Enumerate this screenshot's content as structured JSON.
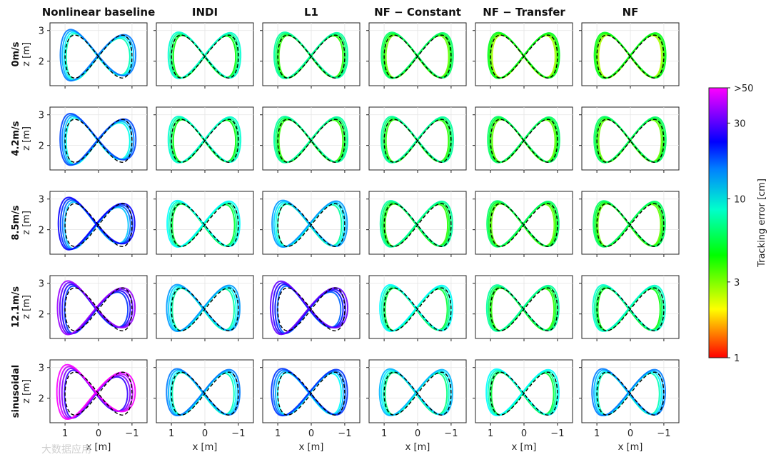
{
  "chart_data": {
    "type": "line",
    "columns": [
      "Nonlinear baseline",
      "INDI",
      "L1",
      "NF − Constant",
      "NF − Transfer",
      "NF"
    ],
    "rows": [
      "0m/s",
      "4.2m/s",
      "8.5m/s",
      "12.1m/s",
      "sinusoidal"
    ],
    "xlabel": "x [m]",
    "ylabel": "z [m]",
    "xticks": [
      "1",
      "0",
      "−1"
    ],
    "yticks": [
      "3",
      "2"
    ],
    "xlim": [
      1.45,
      -1.45
    ],
    "ylim": [
      1.2,
      3.25
    ],
    "reference": {
      "shape": "figure-eight",
      "x_amplitude": 1.0,
      "z_center": 2.15,
      "z_amplitude": 0.7,
      "style": "dashed black"
    },
    "colorbar": {
      "label": "Tracking error [cm]",
      "scale": "log",
      "ticks": [
        "1",
        "3",
        "10",
        "30",
        ">50"
      ],
      "range": [
        1,
        50
      ]
    },
    "mean_error_level_cm": [
      [
        12,
        7,
        6,
        5,
        4,
        4
      ],
      [
        14,
        7,
        6,
        6,
        5,
        5
      ],
      [
        18,
        8,
        11,
        6,
        5,
        5
      ],
      [
        28,
        11,
        24,
        8,
        6,
        7
      ],
      [
        38,
        12,
        15,
        10,
        8,
        12
      ]
    ]
  },
  "watermark": "大数据应用"
}
